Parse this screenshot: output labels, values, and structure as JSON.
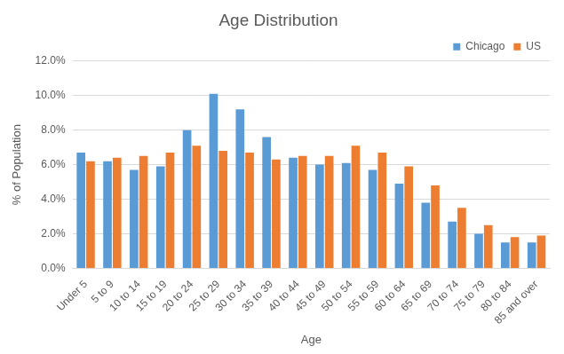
{
  "chart_data": {
    "type": "bar",
    "title": "Age Distribution",
    "x_label": "Age",
    "y_label": "% of Population",
    "categories": [
      "Under 5",
      "5 to 9",
      "10 to 14",
      "15 to 19",
      "20 to 24",
      "25 to 29",
      "30 to 34",
      "35 to 39",
      "40 to 44",
      "45 to 49",
      "50 to 54",
      "55 to 59",
      "60 to 64",
      "65 to 69",
      "70 to 74",
      "75 to 79",
      "80 to 84",
      "85 and over"
    ],
    "series": [
      {
        "name": "Chicago",
        "color": "#5b9bd5",
        "values": [
          6.7,
          6.2,
          5.7,
          5.9,
          8.0,
          10.1,
          9.2,
          7.6,
          6.4,
          6.0,
          6.1,
          5.7,
          4.9,
          3.8,
          2.7,
          2.0,
          1.5,
          1.5
        ]
      },
      {
        "name": "US",
        "color": "#ed7d31",
        "values": [
          6.2,
          6.4,
          6.5,
          6.7,
          7.1,
          6.8,
          6.7,
          6.3,
          6.5,
          6.5,
          7.1,
          6.7,
          5.9,
          4.8,
          3.5,
          2.5,
          1.8,
          1.9
        ]
      }
    ],
    "ylim": [
      0,
      12
    ],
    "yticks": [
      {
        "value": 0,
        "label": "0.0%"
      },
      {
        "value": 2,
        "label": "2.0%"
      },
      {
        "value": 4,
        "label": "4.0%"
      },
      {
        "value": 6,
        "label": "6.0%"
      },
      {
        "value": 8,
        "label": "8.0%"
      },
      {
        "value": 10,
        "label": "10.0%"
      },
      {
        "value": 12,
        "label": "12.0%"
      }
    ],
    "grid": true,
    "legend": "upper right"
  }
}
